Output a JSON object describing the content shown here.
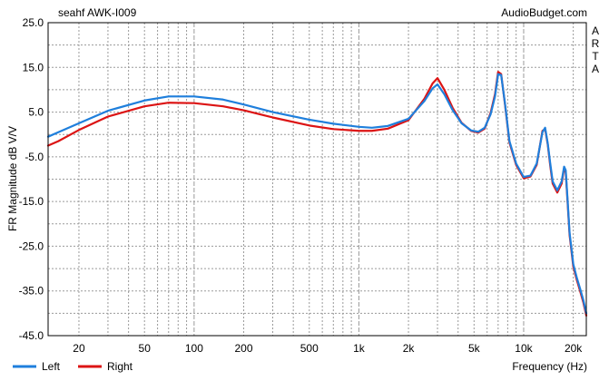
{
  "chart_data": {
    "type": "line",
    "title": "seahf AWK-I009",
    "watermark": "AudioBudget.com",
    "side_label": [
      "A",
      "R",
      "T",
      "A"
    ],
    "xlabel": "Frequency (Hz)",
    "ylabel": "FR Magnitude dB V/V",
    "x_scale": "log",
    "xlim": [
      13,
      24000
    ],
    "ylim": [
      -45,
      25
    ],
    "grid": true,
    "y_ticks": [
      "25.0",
      "15.0",
      "5.0",
      "-5.0",
      "-15.0",
      "-25.0",
      "-35.0",
      "-45.0"
    ],
    "y_tick_values": [
      25,
      15,
      5,
      -5,
      -15,
      -25,
      -35,
      -45
    ],
    "x_ticks": [
      "20",
      "50",
      "100",
      "200",
      "500",
      "1k",
      "2k",
      "5k",
      "10k",
      "20k"
    ],
    "x_tick_values": [
      20,
      50,
      100,
      200,
      500,
      1000,
      2000,
      5000,
      10000,
      20000
    ],
    "legend_position": "bottom-left",
    "colors": {
      "left": "#1f7fdc",
      "right": "#dc1414",
      "grid": "#9a9a9a"
    },
    "series": [
      {
        "name": "Left",
        "color": "#1f7fdc",
        "x": [
          13,
          15,
          20,
          30,
          50,
          70,
          100,
          150,
          200,
          300,
          500,
          700,
          1000,
          1200,
          1500,
          2000,
          2500,
          2800,
          3000,
          3300,
          3700,
          4200,
          4800,
          5300,
          5800,
          6300,
          6700,
          7000,
          7300,
          7700,
          8200,
          9000,
          10000,
          11000,
          12000,
          13000,
          13500,
          14000,
          14500,
          15000,
          16000,
          17000,
          17600,
          18000,
          18500,
          19000,
          20000,
          21000,
          22000,
          23000,
          24000
        ],
        "y": [
          -0.5,
          0.5,
          2.5,
          5.3,
          7.6,
          8.5,
          8.5,
          7.8,
          6.7,
          5.0,
          3.3,
          2.4,
          1.7,
          1.5,
          1.9,
          3.5,
          7.5,
          10.3,
          11.2,
          9.0,
          5.5,
          2.5,
          0.9,
          0.6,
          1.5,
          4.5,
          8.5,
          13.5,
          13.3,
          7.0,
          -1.5,
          -6.5,
          -9.5,
          -9.2,
          -6.5,
          0.5,
          1.5,
          -2.0,
          -6.5,
          -10.5,
          -12.5,
          -10.5,
          -7.2,
          -8.0,
          -15.0,
          -22.0,
          -29.0,
          -32.0,
          -34.5,
          -37.0,
          -40.0
        ]
      },
      {
        "name": "Right",
        "color": "#dc1414",
        "x": [
          13,
          15,
          20,
          30,
          50,
          70,
          100,
          150,
          200,
          300,
          500,
          700,
          1000,
          1200,
          1500,
          2000,
          2500,
          2800,
          3000,
          3300,
          3700,
          4200,
          4800,
          5300,
          5800,
          6300,
          6700,
          7000,
          7300,
          7700,
          8200,
          9000,
          10000,
          11000,
          12000,
          13000,
          13500,
          14000,
          14500,
          15000,
          16000,
          17000,
          17600,
          18000,
          18500,
          19000,
          20000,
          21000,
          22000,
          23000,
          24000
        ],
        "y": [
          -2.5,
          -1.5,
          1.0,
          4.0,
          6.3,
          7.1,
          7.0,
          6.3,
          5.4,
          3.8,
          2.0,
          1.2,
          0.8,
          0.8,
          1.3,
          3.2,
          8.0,
          11.4,
          12.6,
          10.0,
          6.0,
          2.6,
          0.8,
          0.4,
          1.3,
          4.8,
          9.0,
          14.0,
          13.5,
          6.8,
          -1.8,
          -6.8,
          -9.8,
          -9.4,
          -6.8,
          0.8,
          1.2,
          -2.2,
          -7.0,
          -11.0,
          -13.0,
          -11.0,
          -7.5,
          -8.5,
          -15.5,
          -22.5,
          -29.5,
          -32.5,
          -35.0,
          -37.5,
          -40.5
        ]
      }
    ]
  }
}
